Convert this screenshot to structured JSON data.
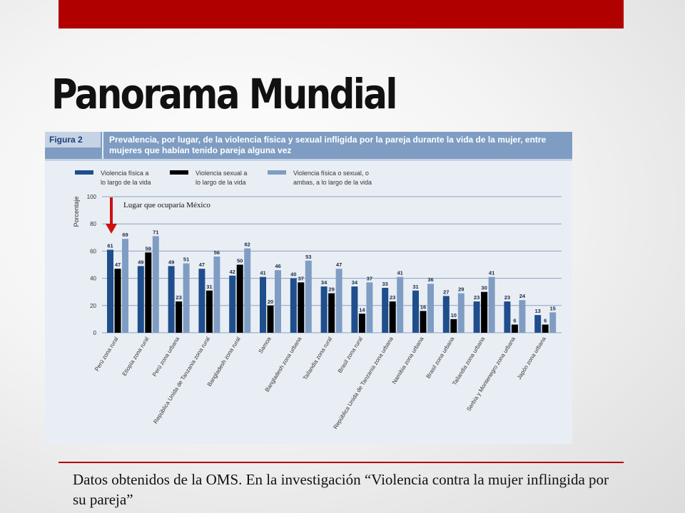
{
  "slide": {
    "title": "Panorama Mundial",
    "caption": "Datos obtenidos de la OMS. En la investigación “Violencia contra la mujer inflingida por su pareja”",
    "accent_color": "#b00000"
  },
  "figure": {
    "label": "Figura 2",
    "title": "Prevalencia, por lugar, de la violencia física y sexual infligida por la pareja durante la vida de la mujer, entre mujeres que habían tenido pareja alguna vez"
  },
  "annotation": {
    "text": "Lugar que ocuparía México",
    "arrow_color": "#cc1111"
  },
  "chart_data": {
    "type": "bar",
    "ylabel": "Porcentaje",
    "ylim": [
      0,
      100
    ],
    "yticks": [
      0,
      20,
      40,
      60,
      80,
      100
    ],
    "grid": true,
    "legend_position": "top",
    "categories": [
      "Perú zona rural",
      "Etiopía zona rural",
      "Perú zona urbana",
      "República Unida de Tanzania zona rural",
      "Bangladesh zona rural",
      "Samoa",
      "Bangladesh zona urbana",
      "Tailandia zona rural",
      "Brasil zona rural",
      "República Unida de Tanzania zona urbana",
      "Namibia zona urbana",
      "Brasil zona urbana",
      "Tailandia zona urbana",
      "Serbia y Montenegro zona urbana",
      "Japón zona urbana"
    ],
    "series": [
      {
        "name": "Violencia física a lo largo de la vida",
        "legend_lines": [
          "Violencia física a",
          "lo largo de la vida"
        ],
        "color": "#1f4e8c",
        "values": [
          61,
          49,
          49,
          47,
          42,
          41,
          40,
          34,
          34,
          33,
          31,
          27,
          23,
          23,
          13
        ]
      },
      {
        "name": "Violencia sexual a lo largo de la vida",
        "legend_lines": [
          "Violencia sexual a",
          "lo largo de la vida"
        ],
        "color": "#000000",
        "values": [
          47,
          59,
          23,
          31,
          50,
          20,
          37,
          29,
          14,
          23,
          16,
          10,
          30,
          6,
          6
        ]
      },
      {
        "name": "Violencia física o sexual, o ambas, a lo largo de la vida",
        "legend_lines": [
          "Violencia física o sexual, o",
          "ambas, a lo largo de la vida"
        ],
        "color": "#7f9dc3",
        "values": [
          69,
          71,
          51,
          56,
          62,
          46,
          53,
          47,
          37,
          41,
          36,
          29,
          41,
          24,
          15
        ]
      }
    ]
  }
}
